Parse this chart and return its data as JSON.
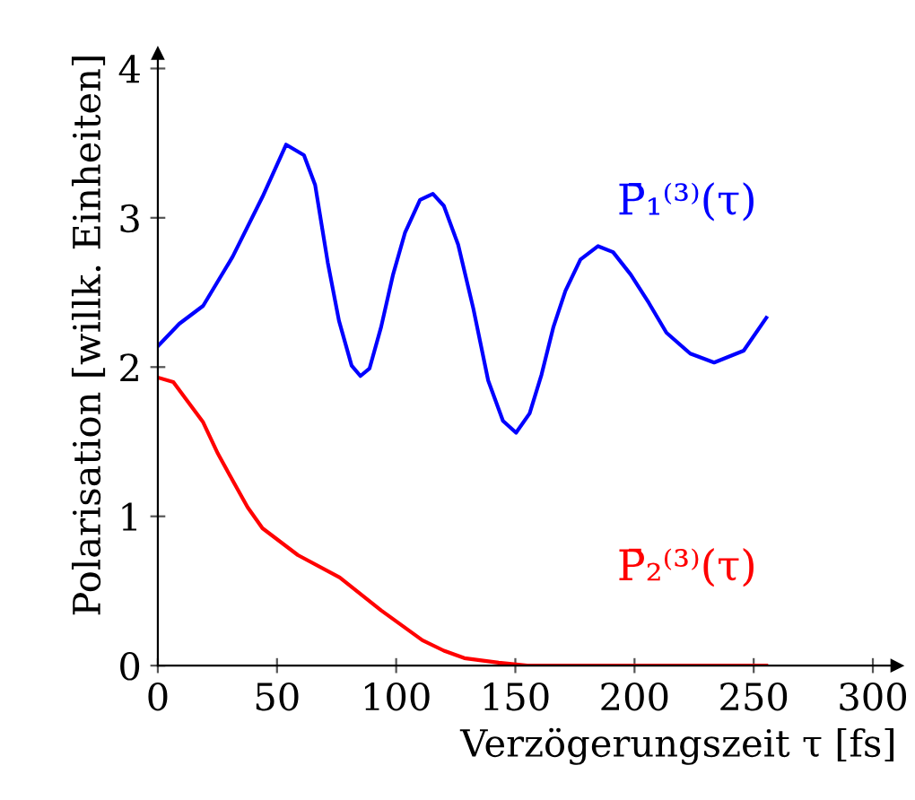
{
  "chart_data": {
    "type": "line",
    "xlabel": "Verzögerungszeit τ [fs]",
    "ylabel": "Polarisation [willk. Einheiten]",
    "xlim": [
      0,
      310
    ],
    "ylim": [
      0,
      4.1
    ],
    "xticks": [
      0,
      50,
      100,
      150,
      200,
      250,
      300
    ],
    "yticks": [
      0,
      1,
      2,
      3,
      4
    ],
    "grid": false,
    "legend": false,
    "marker": "none",
    "line_style": "solid",
    "series": [
      {
        "name": "P̄₁⁽³⁾(τ)",
        "color": "#0000ff",
        "x": [
          0,
          9,
          19,
          31.4,
          43.9,
          53.8,
          61.3,
          66,
          71.3,
          76,
          81.3,
          85,
          88.8,
          93.7,
          98.7,
          103.7,
          110,
          115.4,
          120,
          126,
          132.4,
          138.6,
          144.8,
          150.3,
          156,
          161,
          166,
          171,
          177.3,
          184.7,
          191,
          198.4,
          206,
          213.4,
          223.4,
          233.4,
          245.8,
          255.3
        ],
        "values": [
          2.14,
          2.29,
          2.41,
          2.74,
          3.14,
          3.49,
          3.42,
          3.22,
          2.7,
          2.31,
          2.01,
          1.94,
          1.99,
          2.27,
          2.62,
          2.9,
          3.12,
          3.16,
          3.08,
          2.82,
          2.39,
          1.91,
          1.64,
          1.56,
          1.69,
          1.95,
          2.27,
          2.51,
          2.72,
          2.81,
          2.77,
          2.62,
          2.43,
          2.23,
          2.09,
          2.03,
          2.11,
          2.33
        ]
      },
      {
        "name": "P̄₂⁽³⁾(τ)",
        "color": "#ff0000",
        "x": [
          0,
          6.5,
          19,
          25.2,
          31.4,
          37.7,
          43.9,
          58.8,
          76.3,
          93.7,
          111,
          120,
          128.6,
          143,
          155,
          200,
          255.3
        ],
        "values": [
          1.93,
          1.9,
          1.63,
          1.42,
          1.24,
          1.06,
          0.92,
          0.74,
          0.59,
          0.37,
          0.17,
          0.1,
          0.05,
          0.02,
          0,
          0,
          0
        ]
      }
    ]
  }
}
